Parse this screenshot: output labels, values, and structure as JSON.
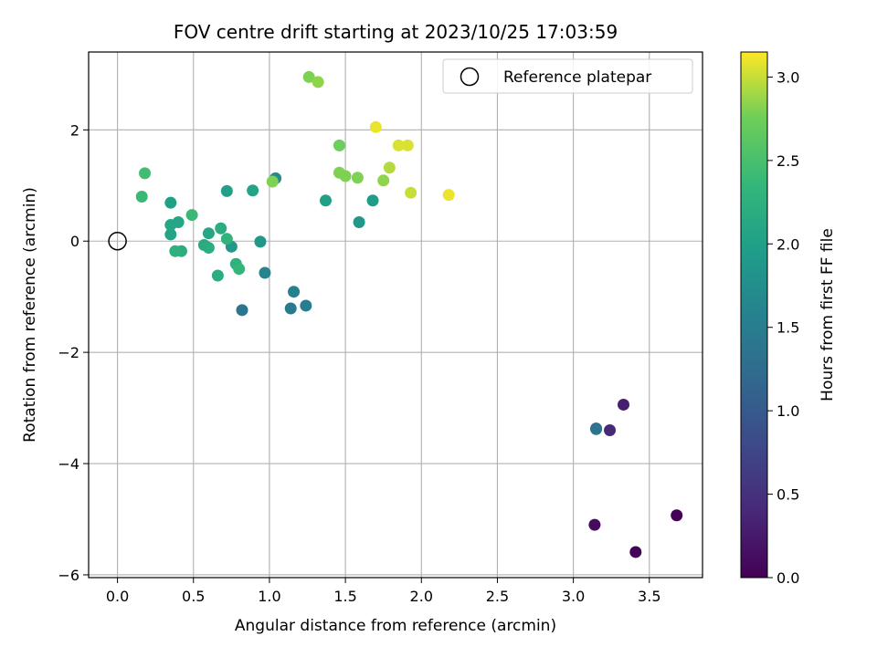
{
  "chart_data": {
    "type": "scatter",
    "title": "FOV centre drift starting at 2023/10/25 17:03:59",
    "xlabel": "Angular distance from reference (arcmin)",
    "ylabel": "Rotation from reference (arcmin)",
    "xlim": [
      -0.19,
      3.85
    ],
    "ylim": [
      -6.05,
      3.4
    ],
    "xticks": [
      0.0,
      0.5,
      1.0,
      1.5,
      2.0,
      2.5,
      3.0,
      3.5
    ],
    "xtick_labels": [
      "0.0",
      "0.5",
      "1.0",
      "1.5",
      "2.0",
      "2.5",
      "3.0",
      "3.5"
    ],
    "yticks": [
      -6,
      -4,
      -2,
      0,
      2
    ],
    "ytick_labels": [
      "−6",
      "−4",
      "−2",
      "0",
      "2"
    ],
    "grid": true,
    "legend": {
      "position": "top-right",
      "entries": [
        "Reference platepar"
      ]
    },
    "reference_point": {
      "x": 0.0,
      "y": 0.0
    },
    "colorbar": {
      "label": "Hours from first FF file",
      "range": [
        0.0,
        3.15
      ],
      "ticks": [
        0.0,
        0.5,
        1.0,
        1.5,
        2.0,
        2.5,
        3.0
      ],
      "tick_labels": [
        "0.0",
        "0.5",
        "1.0",
        "1.5",
        "2.0",
        "2.5",
        "3.0"
      ],
      "colormap": "viridis"
    },
    "points": [
      {
        "x": 3.68,
        "y": -4.93,
        "c": 0.02
      },
      {
        "x": 3.41,
        "y": -5.59,
        "c": 0.04
      },
      {
        "x": 3.14,
        "y": -5.1,
        "c": 0.1
      },
      {
        "x": 3.33,
        "y": -2.94,
        "c": 0.3
      },
      {
        "x": 3.24,
        "y": -3.4,
        "c": 0.4
      },
      {
        "x": 3.15,
        "y": -3.37,
        "c": 0.7
      },
      {
        "x": 3.15,
        "y": -3.38,
        "c": 1.4
      },
      {
        "x": 0.82,
        "y": -1.24,
        "c": 1.4
      },
      {
        "x": 1.14,
        "y": -1.21,
        "c": 1.45
      },
      {
        "x": 1.24,
        "y": -1.16,
        "c": 1.5
      },
      {
        "x": 1.16,
        "y": -0.91,
        "c": 1.55
      },
      {
        "x": 0.97,
        "y": -0.57,
        "c": 1.6
      },
      {
        "x": 1.04,
        "y": 1.13,
        "c": 1.7
      },
      {
        "x": 1.59,
        "y": 0.34,
        "c": 1.9
      },
      {
        "x": 0.94,
        "y": -0.01,
        "c": 1.9
      },
      {
        "x": 0.75,
        "y": -0.1,
        "c": 1.9
      },
      {
        "x": 1.68,
        "y": 0.73,
        "c": 1.95
      },
      {
        "x": 1.37,
        "y": 0.73,
        "c": 2.0
      },
      {
        "x": 0.35,
        "y": 0.69,
        "c": 2.0
      },
      {
        "x": 0.72,
        "y": 0.9,
        "c": 2.0
      },
      {
        "x": 0.89,
        "y": 0.91,
        "c": 2.05
      },
      {
        "x": 0.35,
        "y": 0.12,
        "c": 2.05
      },
      {
        "x": 0.4,
        "y": 0.34,
        "c": 2.1
      },
      {
        "x": 0.35,
        "y": 0.29,
        "c": 2.1
      },
      {
        "x": 0.6,
        "y": 0.14,
        "c": 2.1
      },
      {
        "x": 0.57,
        "y": -0.07,
        "c": 2.15
      },
      {
        "x": 0.6,
        "y": -0.12,
        "c": 2.2
      },
      {
        "x": 0.68,
        "y": 0.23,
        "c": 2.2
      },
      {
        "x": 0.66,
        "y": -0.62,
        "c": 2.2
      },
      {
        "x": 0.42,
        "y": -0.18,
        "c": 2.2
      },
      {
        "x": 0.38,
        "y": -0.18,
        "c": 2.25
      },
      {
        "x": 0.78,
        "y": -0.41,
        "c": 2.25
      },
      {
        "x": 0.72,
        "y": 0.04,
        "c": 2.3
      },
      {
        "x": 0.8,
        "y": -0.5,
        "c": 2.35
      },
      {
        "x": 0.49,
        "y": 0.47,
        "c": 2.4
      },
      {
        "x": 0.16,
        "y": 0.8,
        "c": 2.4
      },
      {
        "x": 0.18,
        "y": 1.22,
        "c": 2.45
      },
      {
        "x": 1.46,
        "y": 1.72,
        "c": 2.75
      },
      {
        "x": 1.02,
        "y": 1.07,
        "c": 2.8
      },
      {
        "x": 1.58,
        "y": 1.14,
        "c": 2.8
      },
      {
        "x": 1.46,
        "y": 1.23,
        "c": 2.8
      },
      {
        "x": 1.5,
        "y": 1.17,
        "c": 2.8
      },
      {
        "x": 1.26,
        "y": 2.95,
        "c": 2.8
      },
      {
        "x": 1.32,
        "y": 2.86,
        "c": 2.85
      },
      {
        "x": 1.75,
        "y": 1.09,
        "c": 2.85
      },
      {
        "x": 1.79,
        "y": 1.32,
        "c": 2.95
      },
      {
        "x": 1.93,
        "y": 0.87,
        "c": 3.0
      },
      {
        "x": 1.85,
        "y": 1.72,
        "c": 3.05
      },
      {
        "x": 1.91,
        "y": 1.72,
        "c": 3.05
      },
      {
        "x": 1.7,
        "y": 2.05,
        "c": 3.1
      },
      {
        "x": 2.18,
        "y": 0.83,
        "c": 3.1
      }
    ]
  }
}
